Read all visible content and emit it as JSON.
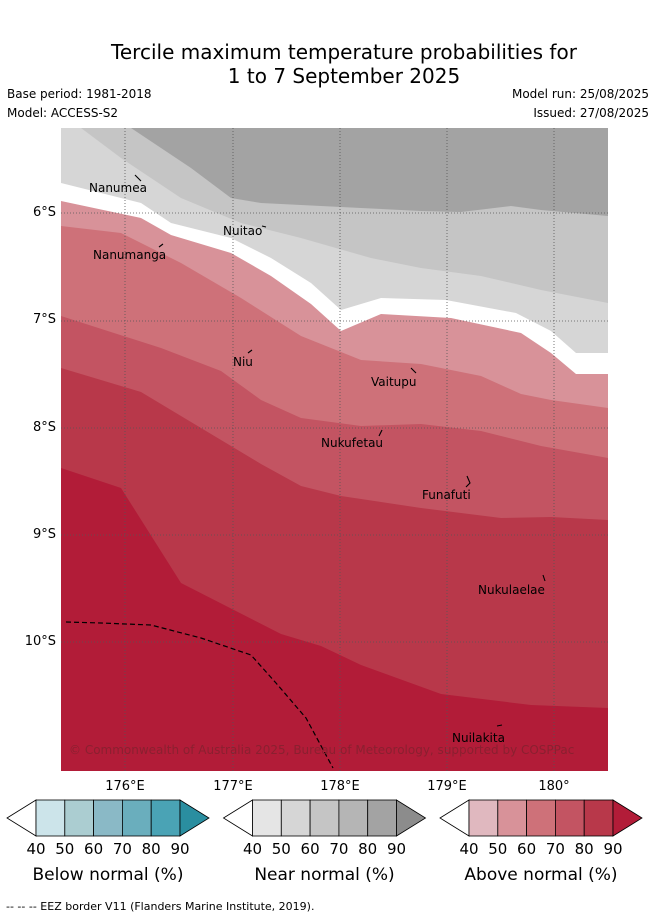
{
  "title": {
    "line1": "Tercile maximum temperature probabilities for",
    "line2": "1 to 7 September 2025"
  },
  "meta": {
    "base_period": "Base period: 1981-2018",
    "model": "Model: ACCESS-S2",
    "model_run": "Model run: 25/08/2025",
    "issued": "Issued: 27/08/2025"
  },
  "axes": {
    "lat_labels": [
      "6°S",
      "7°S",
      "8°S",
      "9°S",
      "10°S"
    ],
    "lon_labels": [
      "176°E",
      "177°E",
      "178°E",
      "179°E",
      "180°"
    ]
  },
  "places": [
    {
      "name": "Nanumea"
    },
    {
      "name": "Nuitao"
    },
    {
      "name": "Nanumanga"
    },
    {
      "name": "Niu"
    },
    {
      "name": "Vaitupu"
    },
    {
      "name": "Nukufetau"
    },
    {
      "name": "Funafuti"
    },
    {
      "name": "Nukulaelae"
    },
    {
      "name": "Nuilakita"
    }
  ],
  "copyright": "© Commonwealth of Australia 2025, Bureau of Meteorology, supported by COSPPac",
  "legends": [
    {
      "label": "Below normal (%)",
      "ticks": [
        "40",
        "50",
        "60",
        "70",
        "80",
        "90"
      ],
      "colors": [
        "#ffffff",
        "#cce4ea",
        "#abcdd1",
        "#8ab9c6",
        "#6aaebd",
        "#4aa3b5",
        "#2a8ea0"
      ]
    },
    {
      "label": "Near normal (%)",
      "ticks": [
        "40",
        "50",
        "60",
        "70",
        "80",
        "90"
      ],
      "colors": [
        "#ffffff",
        "#e5e5e5",
        "#d6d6d6",
        "#c5c5c5",
        "#b5b5b5",
        "#a3a3a3",
        "#8c8c8c"
      ]
    },
    {
      "label": "Above normal (%)",
      "ticks": [
        "40",
        "50",
        "60",
        "70",
        "80",
        "90"
      ],
      "colors": [
        "#ffffff",
        "#e0b8bf",
        "#d89299",
        "#ce7179",
        "#c35462",
        "#b8384a",
        "#b21c38"
      ]
    }
  ],
  "footer": "--  --  -- EEZ border V11 (Flanders Marine Institute, 2019)."
}
